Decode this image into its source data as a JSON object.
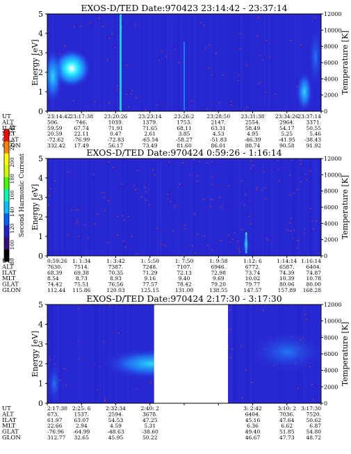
{
  "chart_data": [
    {
      "type": "heatmap",
      "title": "EXOS-D/TED   Date:970423  23:14:42 - 23:37:14",
      "ylabel": "Energy [eV]",
      "y2label": "Temperature [K]",
      "ylim": [
        0,
        5
      ],
      "y2lim": [
        0,
        12000
      ],
      "yticks": [
        "0",
        "1",
        "2",
        "3",
        "4",
        "5"
      ],
      "y2ticks": [
        "0",
        "2000",
        "4000",
        "6000",
        "8000",
        "10000",
        "12000"
      ],
      "gaps": [],
      "rows": [
        {
          "label": "UT",
          "values": [
            "23:14:42",
            "23:17:38",
            "23:20:26",
            "23:23:14",
            "23:26:2",
            "23:28:50",
            "23:31:38",
            "23:34:26",
            "23:37:14"
          ]
        },
        {
          "label": "ALT",
          "values": [
            "506.",
            "746.",
            "1039.",
            "1379.",
            "1753.",
            "2147.",
            "2554.",
            "2964.",
            "3371."
          ]
        },
        {
          "label": "ILAT",
          "values": [
            "59.59",
            "67.74",
            "71.91",
            "71.65",
            "68.11",
            "63.31",
            "58.49",
            "54.17",
            "50.55"
          ]
        },
        {
          "label": "MLT",
          "values": [
            "20.59",
            "22.11",
            "0.47",
            "2.61",
            "3.85",
            "4.53",
            "4.95",
            "5.25",
            "5.46"
          ]
        },
        {
          "label": "GLAT",
          "values": [
            "-72.62",
            "-76.99",
            "-72.83",
            "-65.54",
            "-58.27",
            "-51.83",
            "-46.39",
            "-41.95",
            "-38.43"
          ]
        },
        {
          "label": "GLON",
          "values": [
            "332.42",
            "17.49",
            "56.17",
            "73.49",
            "81.60",
            "86.01",
            "88.74",
            "90.58",
            "91.92"
          ]
        }
      ]
    },
    {
      "type": "heatmap",
      "title": "EXOS-D/TED   Date:970424   0:59:26 - 1:16:14",
      "ylabel": "Energy [eV]",
      "y2label": "Temperature [K]",
      "ylim": [
        0,
        5
      ],
      "y2lim": [
        0,
        12000
      ],
      "yticks": [
        "0",
        "1",
        "2",
        "3",
        "4",
        "5"
      ],
      "y2ticks": [
        "0",
        "2000",
        "4000",
        "6000",
        "8000",
        "10000",
        "12000"
      ],
      "gaps": [],
      "rows": [
        {
          "label": "UT",
          "values": [
            "0:59:26",
            "1: 1:34",
            "1: 3:42",
            "1: 5:50",
            "1: 7:50",
            "1: 9:58",
            "1:12: 6",
            "1:14:14",
            "1:16:14"
          ]
        },
        {
          "label": "ALT",
          "values": [
            "7630.",
            "7514.",
            "7387.",
            "7248.",
            "7107.",
            "6946.",
            "6772.",
            "6587.",
            "6404."
          ]
        },
        {
          "label": "ILAT",
          "values": [
            "68.39",
            "69.38",
            "70.35",
            "71.29",
            "72.13",
            "72.98",
            "73.74",
            "74.39",
            "74.87"
          ]
        },
        {
          "label": "MLT",
          "values": [
            "8.54",
            "8.73",
            "8.93",
            "9.16",
            "9.40",
            "9.69",
            "10.02",
            "10.39",
            "10.78"
          ]
        },
        {
          "label": "GLAT",
          "values": [
            "74.42",
            "75.51",
            "76.56",
            "77.57",
            "78.42",
            "79.20",
            "79.77",
            "80.06",
            "80.00"
          ]
        },
        {
          "label": "GLON",
          "values": [
            "112.44",
            "115.86",
            "120.03",
            "125.15",
            "131.00",
            "138.55",
            "147.57",
            "157.89",
            "168.28"
          ]
        }
      ]
    },
    {
      "type": "heatmap",
      "title": "EXOS-D/TED   Date:970424   2:17:30 - 3:17:30",
      "ylabel": "Energy [eV]",
      "y2label": "Temperature [K]",
      "ylim": [
        0,
        5
      ],
      "y2lim": [
        0,
        12000
      ],
      "yticks": [
        "0",
        "1",
        "2",
        "3",
        "4",
        "5"
      ],
      "y2ticks": [
        "0",
        "2000",
        "4000",
        "6000",
        "8000",
        "10000",
        "12000"
      ],
      "gaps": [
        [
          0.39,
          0.66
        ]
      ],
      "rows": [
        {
          "label": "UT",
          "values": [
            "2:17:30",
            "2:25: 6",
            "2:32:34",
            "2:40: 2",
            "",
            "",
            "3: 2:42",
            "3:10: 2",
            "3:17:30"
          ]
        },
        {
          "label": "ALT",
          "values": [
            "673.",
            "1537.",
            "2594.",
            "3678.",
            "",
            "",
            "6404.",
            "7036.",
            "7520."
          ]
        },
        {
          "label": "ILAT",
          "values": [
            "61.97",
            "63.07",
            "54.53",
            "47.25",
            "",
            "",
            "45.16",
            "47.64",
            "50.62"
          ]
        },
        {
          "label": "MLT",
          "values": [
            "22.66",
            "2.94",
            "4.59",
            "5.31",
            "",
            "",
            "6.36",
            "6.62",
            "6.87"
          ]
        },
        {
          "label": "GLAT",
          "values": [
            "-76.96",
            "-64.99",
            "-48.63",
            "-38.60",
            "",
            "",
            "49.40",
            "51.85",
            "54.80"
          ]
        },
        {
          "label": "GLON",
          "values": [
            "312.77",
            "32.65",
            "45.95",
            "50.22",
            "",
            "",
            "46.67",
            "47.73",
            "48.72"
          ]
        }
      ]
    }
  ],
  "colorbar": {
    "label": "Second Harmonic Current",
    "ticks": [
      "80",
      "100",
      "120",
      "140",
      "160",
      "180",
      "200",
      "220",
      "240"
    ],
    "colors": [
      "#000000",
      "#3a0a7a",
      "#2020d0",
      "#0060ff",
      "#00c0ff",
      "#00ffb0",
      "#40ff00",
      "#d0ff00",
      "#ffff00",
      "#ff8000",
      "#ff0000"
    ]
  },
  "colors": {
    "background": "#2828d2",
    "mid": "#1e8cff",
    "high": "#28f0ff",
    "peak": "#ffffff",
    "speck": "#d6423c"
  }
}
